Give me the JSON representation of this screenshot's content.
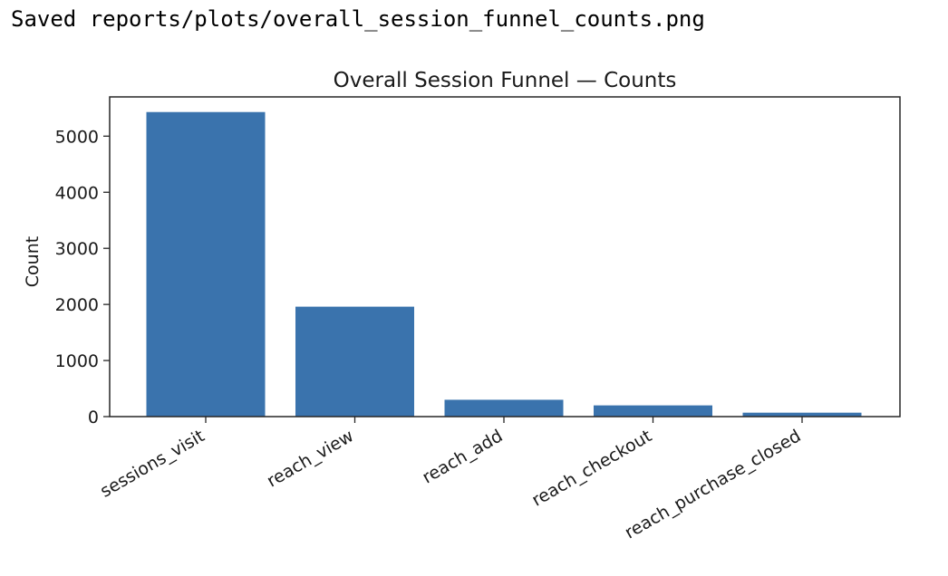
{
  "output": {
    "text": "Saved reports/plots/overall_session_funnel_counts.png"
  },
  "chart_data": {
    "type": "bar",
    "title": "Overall Session Funnel — Counts",
    "xlabel": "",
    "ylabel": "Count",
    "categories": [
      "sessions_visit",
      "reach_view",
      "reach_add",
      "reach_checkout",
      "reach_purchase_closed"
    ],
    "values": [
      5430,
      1960,
      300,
      200,
      70
    ],
    "yticks": [
      0,
      1000,
      2000,
      3000,
      4000,
      5000
    ],
    "ylim": [
      0,
      5700
    ],
    "grid": false,
    "legend": "none",
    "bar_color": "#3a73ad"
  }
}
